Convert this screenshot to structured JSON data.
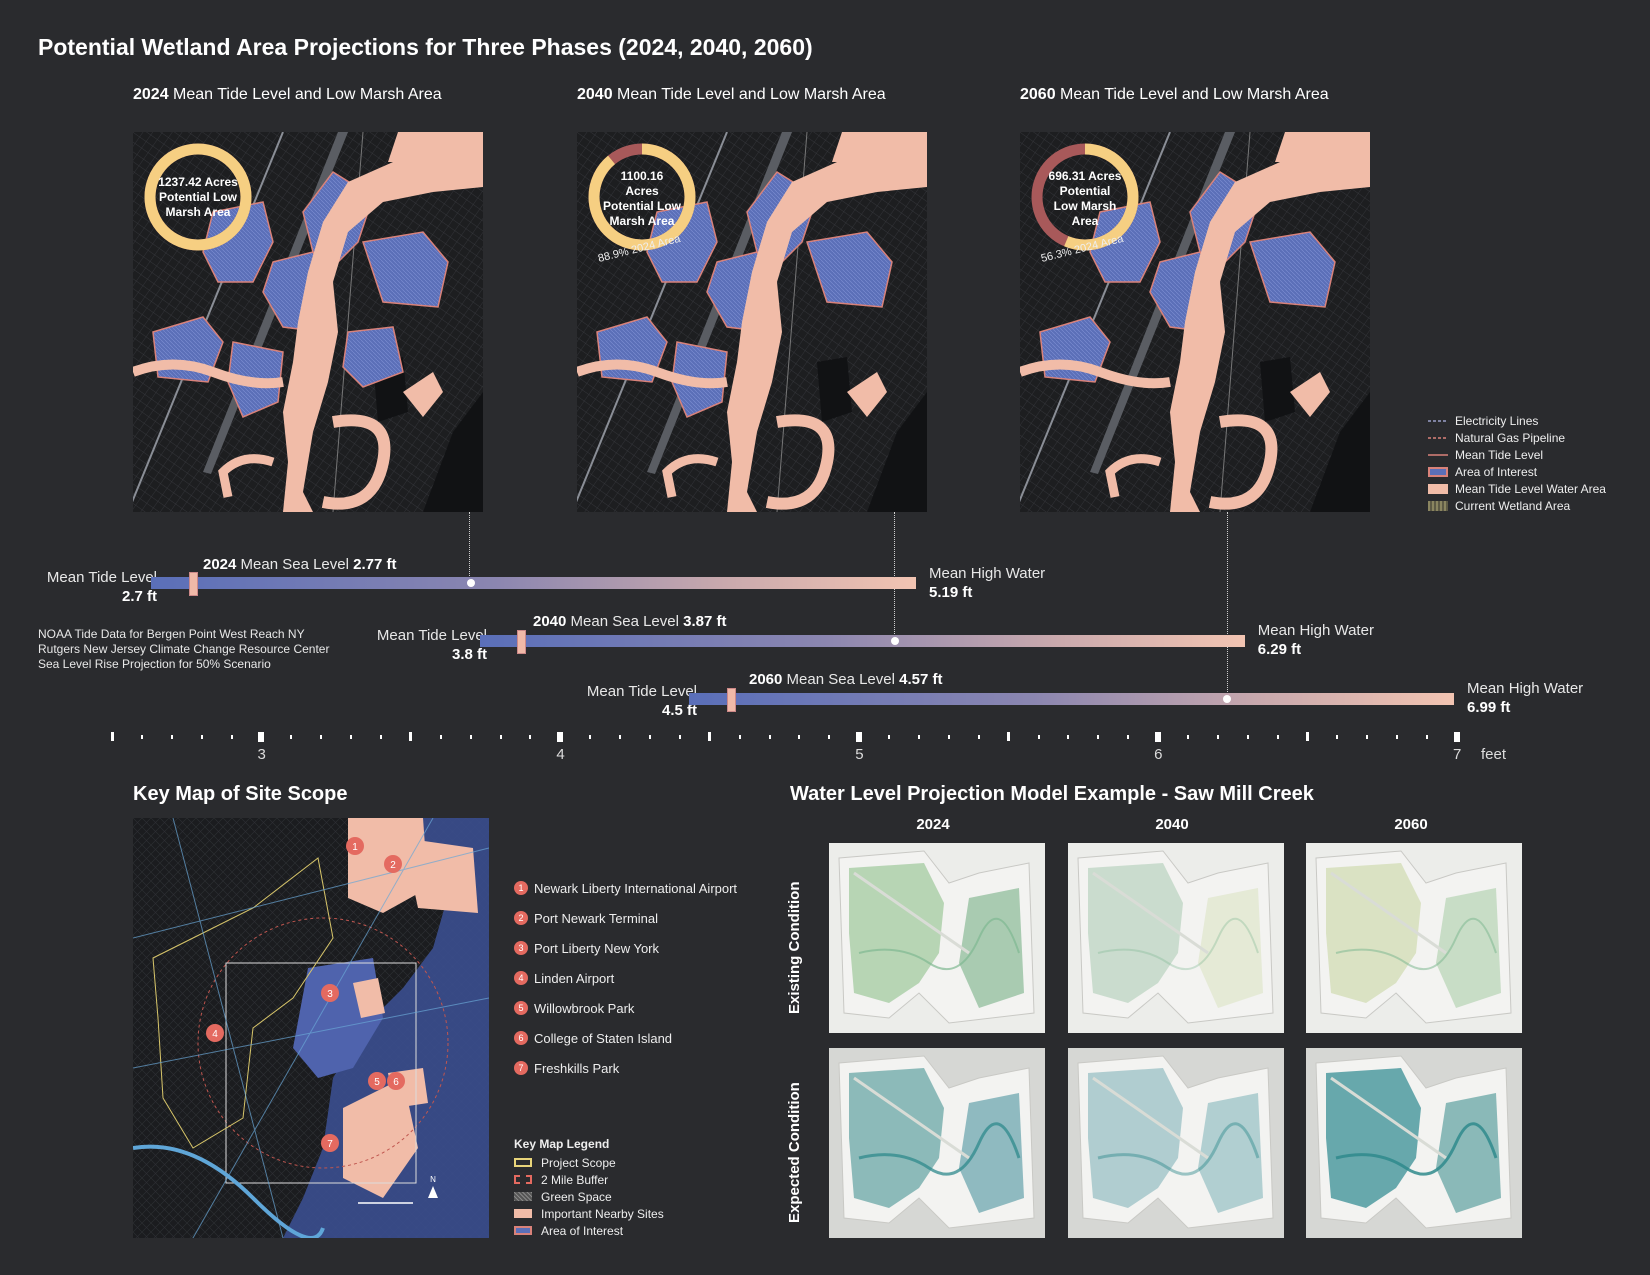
{
  "title": "Potential Wetland Area Projections for Three Phases (2024, 2040, 2060)",
  "phases": [
    {
      "year": "2024",
      "heading": "Mean Tide Level and Low Marsh Area",
      "acres": "1237.42 Acres",
      "ring_l2": "Potential Low",
      "ring_l3": "Marsh Area",
      "ring_l4": "",
      "fraction": 1.0,
      "pct_label": ""
    },
    {
      "year": "2040",
      "heading": "Mean Tide Level and Low Marsh Area",
      "acres": "1100.16",
      "ring_l2": "Acres",
      "ring_l3": "Potential Low",
      "ring_l4": "Marsh Area",
      "fraction": 0.889,
      "pct_label": "88.9% 2024 Area"
    },
    {
      "year": "2060",
      "heading": "Mean Tide Level and Low Marsh Area",
      "acres": "696.31 Acres",
      "ring_l2": "Potential",
      "ring_l3": "Low Marsh",
      "ring_l4": "Area",
      "fraction": 0.563,
      "pct_label": "56.3% 2024 Area"
    }
  ],
  "map_legend": [
    {
      "label": "Electricity Lines",
      "color": "#9aa0c8",
      "style": "dashed"
    },
    {
      "label": "Natural Gas Pipeline",
      "color": "#d9827a",
      "style": "dashed"
    },
    {
      "label": "Mean Tide Level",
      "color": "#d9827a",
      "style": "line"
    },
    {
      "label": "Area of Interest",
      "color": "#5b6fb8",
      "style": "fill-outline"
    },
    {
      "label": "Mean Tide Level Water Area",
      "color": "#f1bca8",
      "style": "fill"
    },
    {
      "label": "Current Wetland Area",
      "color": "#8a8560",
      "style": "hatch"
    }
  ],
  "bars": [
    {
      "mtl_label": "Mean Tide Level",
      "mtl": "2.7 ft",
      "year": "2024",
      "msl_label": "Mean Sea Level",
      "msl": "2.77 ft",
      "mhw_label": "Mean High Water",
      "mhw": "5.19 ft",
      "mtl_v": 2.7,
      "msl_v": 2.77,
      "mhw_v": 5.19,
      "dot_v": 3.7
    },
    {
      "mtl_label": "Mean Tide Level",
      "mtl": "3.8 ft",
      "year": "2040",
      "msl_label": "Mean Sea Level",
      "msl": "3.87 ft",
      "mhw_label": "Mean High Water",
      "mhw": "6.29 ft",
      "mtl_v": 3.8,
      "msl_v": 3.87,
      "mhw_v": 6.29,
      "dot_v": 5.12
    },
    {
      "mtl_label": "Mean Tide Level",
      "mtl": "4.5 ft",
      "year": "2060",
      "msl_label": "Mean Sea Level",
      "msl": "4.57 ft",
      "mhw_label": "Mean High Water",
      "mhw": "6.99 ft",
      "mtl_v": 4.5,
      "msl_v": 4.57,
      "mhw_v": 6.99,
      "dot_v": 6.23
    }
  ],
  "source": {
    "l1": "NOAA Tide Data for Bergen Point West Reach NY",
    "l2": "Rutgers New Jersey Climate Change Resource Center",
    "l3": "Sea Level Rise Projection for 50% Scenario"
  },
  "axis": {
    "ticks": [
      "3",
      "4",
      "5",
      "6",
      "7"
    ],
    "unit": "feet",
    "min": 2.5,
    "max": 7.0
  },
  "keymap": {
    "title": "Key Map of Site Scope",
    "sites": [
      {
        "n": "1",
        "label": "Newark Liberty International Airport"
      },
      {
        "n": "2",
        "label": "Port Newark Terminal"
      },
      {
        "n": "3",
        "label": "Port Liberty New York"
      },
      {
        "n": "4",
        "label": "Linden Airport"
      },
      {
        "n": "5",
        "label": "Willowbrook Park"
      },
      {
        "n": "6",
        "label": "College of Staten Island"
      },
      {
        "n": "7",
        "label": "Freshkills Park"
      }
    ],
    "legend_title": "Key Map Legend",
    "legend": [
      "Project Scope",
      "2 Mile Buffer",
      "Green Space",
      "Important Nearby Sites",
      "Area of Interest"
    ],
    "north": "N"
  },
  "model": {
    "title": "Water Level Projection Model Example - Saw Mill Creek",
    "years": [
      "2024",
      "2040",
      "2060"
    ],
    "rows": [
      "Existing Condition",
      "Expected Condition"
    ]
  }
}
